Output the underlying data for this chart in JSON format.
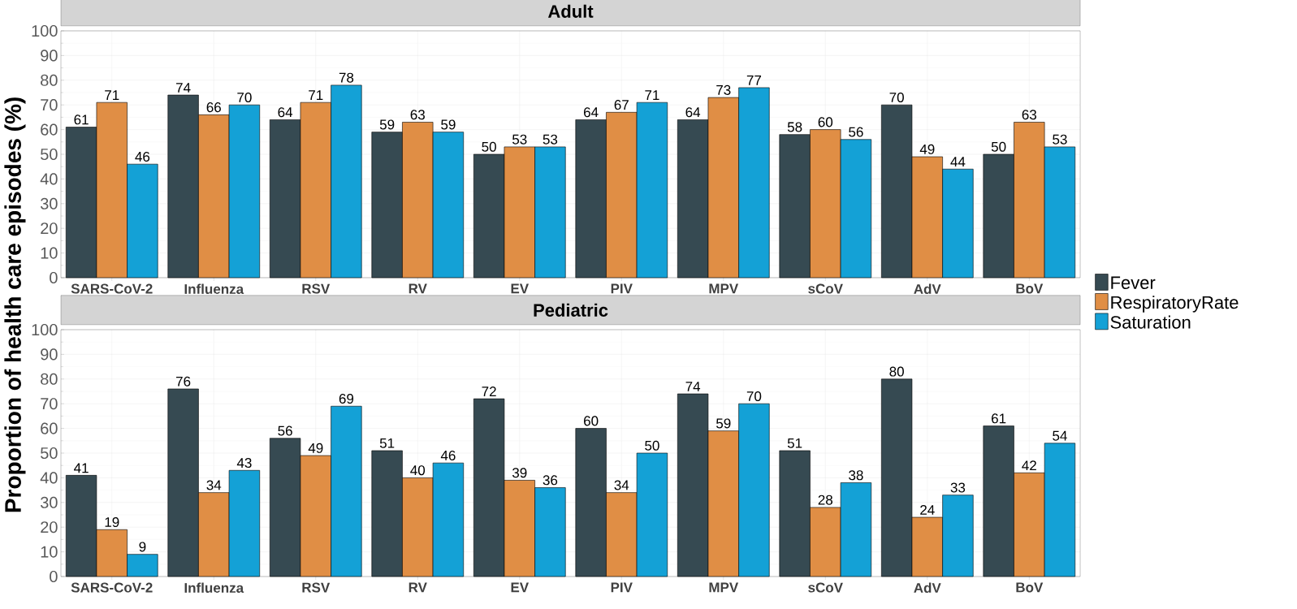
{
  "chart_data": [
    {
      "type": "bar",
      "title": "Adult",
      "ylabel": "Proportion of health care episodes (%)",
      "categories": [
        "SARS-CoV-2",
        "Influenza",
        "RSV",
        "RV",
        "EV",
        "PIV",
        "MPV",
        "sCoV",
        "AdV",
        "BoV"
      ],
      "series": [
        {
          "name": "Fever",
          "color": "#364a52",
          "values": [
            61,
            74,
            64,
            59,
            50,
            64,
            64,
            58,
            70,
            50
          ]
        },
        {
          "name": "RespiratoryRate",
          "color": "#e08e45",
          "values": [
            71,
            66,
            71,
            63,
            53,
            67,
            73,
            60,
            49,
            63
          ]
        },
        {
          "name": "Saturation",
          "color": "#14a1d6",
          "values": [
            46,
            70,
            78,
            59,
            53,
            71,
            77,
            56,
            44,
            53
          ]
        }
      ],
      "ylim": [
        0,
        100
      ],
      "yticks": [
        0,
        10,
        20,
        30,
        40,
        50,
        60,
        70,
        80,
        90,
        100
      ],
      "grid": true,
      "legend": "right",
      "data_labels": true
    },
    {
      "type": "bar",
      "title": "Pediatric",
      "categories": [
        "SARS-CoV-2",
        "Influenza",
        "RSV",
        "RV",
        "EV",
        "PIV",
        "MPV",
        "sCoV",
        "AdV",
        "BoV"
      ],
      "series": [
        {
          "color": "#364a52",
          "values": [
            41,
            76,
            56,
            51,
            72,
            60,
            74,
            51,
            80,
            61
          ]
        },
        {
          "color": "#e08e45",
          "values": [
            19,
            34,
            49,
            40,
            39,
            34,
            59,
            28,
            24,
            42
          ]
        },
        {
          "color": "#14a1d6",
          "values": [
            9,
            43,
            69,
            46,
            36,
            50,
            70,
            38,
            33,
            54
          ]
        }
      ],
      "ylim": [
        0,
        100
      ],
      "yticks": [
        0,
        10,
        20,
        30,
        40,
        50,
        60,
        70,
        80,
        90,
        100
      ],
      "grid": true,
      "data_labels": true
    }
  ]
}
